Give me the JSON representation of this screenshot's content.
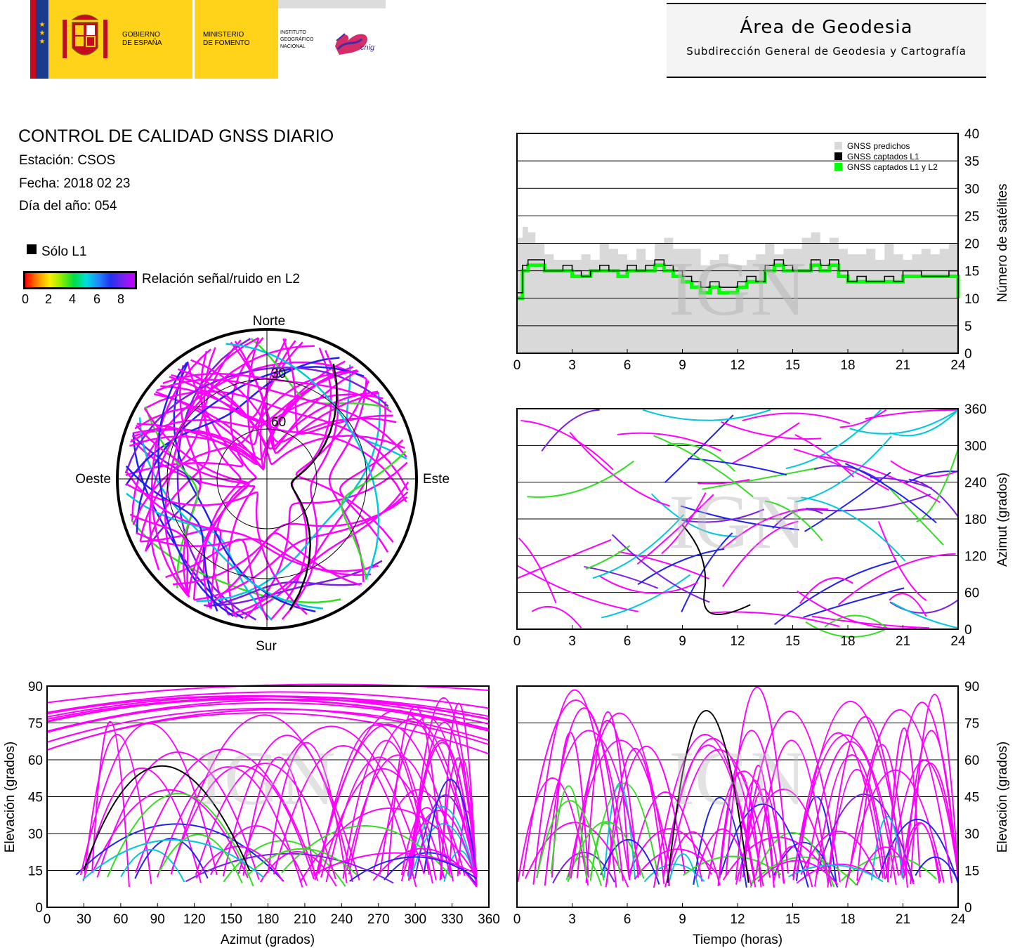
{
  "header": {
    "gov_line1": "GOBIERNO",
    "gov_line2": "DE ESPAÑA",
    "min_line1": "MINISTERIO",
    "min_line2": "DE FOMENTO",
    "inst_line1": "INSTITUTO",
    "inst_line2": "GEOGRÁFICO",
    "inst_line3": "NACIONAL",
    "cnig": "cnig",
    "area_title": "Área de Geodesia",
    "area_subtitle": "Subdirección General de Geodesia y Cartografía"
  },
  "report": {
    "title": "CONTROL DE CALIDAD GNSS DIARIO",
    "station": "Estación: CSOS",
    "date": "Fecha: 2018 02 23",
    "doy": "Día del año: 054"
  },
  "legend": {
    "l1_only": "Sólo L1",
    "snr_label": "Relación señal/ruido en L2",
    "snr_ticks": [
      "0",
      "2",
      "4",
      "6",
      "8"
    ]
  },
  "watermark": "IGN",
  "colors": {
    "magenta": "#ff00ff",
    "blue": "#2222ee",
    "violet": "#7a1ee6",
    "cyan": "#00c8d8",
    "green": "#33dd22",
    "predicted": "#d9d9d9",
    "l1": "#000000",
    "l1l2": "#00ff00"
  },
  "chart_data": [
    {
      "type": "skyplot",
      "labels": {
        "north": "Norte",
        "south": "Sur",
        "east": "Este",
        "west": "Oeste"
      },
      "rings": [
        "30",
        "60"
      ]
    },
    {
      "type": "area",
      "ylabel": "Número de satélites",
      "xlim": [
        0,
        24
      ],
      "ylim": [
        0,
        40
      ],
      "xticks": [
        "0",
        "3",
        "6",
        "9",
        "12",
        "15",
        "18",
        "21",
        "24"
      ],
      "yticks": [
        "0",
        "5",
        "10",
        "15",
        "20",
        "25",
        "30",
        "35",
        "40"
      ],
      "legend": [
        "GNSS predichos",
        "GNSS captados L1",
        "GNSS captados L1 y L2"
      ],
      "series": [
        {
          "name": "GNSS predichos",
          "x": [
            0,
            0.3,
            0.6,
            1.0,
            1.5,
            2,
            2.5,
            3,
            3.5,
            4,
            4.5,
            5,
            5.5,
            6,
            6.5,
            7,
            7.5,
            8,
            8.5,
            9,
            9.5,
            10,
            10.5,
            11,
            11.5,
            12,
            12.5,
            13,
            13.5,
            14,
            14.5,
            15,
            15.5,
            16,
            16.5,
            17,
            17.5,
            18,
            18.5,
            19,
            19.5,
            20,
            20.5,
            21,
            21.5,
            22,
            22.5,
            23,
            23.5,
            24
          ],
          "values": [
            21,
            23,
            22,
            20,
            18,
            17,
            17,
            17,
            18,
            17,
            20,
            19,
            18,
            17,
            19,
            17,
            20,
            21,
            19,
            19,
            19,
            16,
            17,
            18,
            16,
            16,
            17,
            18,
            20,
            18,
            19,
            19,
            21,
            22,
            20,
            21,
            19,
            18,
            18,
            19,
            17,
            20,
            18,
            17,
            18,
            19,
            18,
            19,
            20,
            20
          ]
        },
        {
          "name": "GNSS captados L1",
          "x": [
            0,
            0.3,
            0.6,
            1.0,
            1.5,
            2,
            2.5,
            3,
            3.5,
            4,
            4.5,
            5,
            5.5,
            6,
            6.5,
            7,
            7.5,
            8,
            8.5,
            9,
            9.5,
            10,
            10.5,
            11,
            11.5,
            12,
            12.5,
            13,
            13.5,
            14,
            14.5,
            15,
            15.5,
            16,
            16.5,
            17,
            17.5,
            18,
            18.5,
            19,
            19.5,
            20,
            20.5,
            21,
            21.5,
            22,
            22.5,
            23,
            23.5,
            24
          ],
          "values": [
            11,
            16,
            17,
            17,
            15,
            15,
            16,
            15,
            14,
            15,
            16,
            15,
            15,
            16,
            15,
            16,
            17,
            16,
            15,
            14,
            13,
            12,
            13,
            12,
            12,
            13,
            14,
            13,
            16,
            17,
            16,
            15,
            15,
            17,
            16,
            17,
            15,
            13,
            14,
            13,
            13,
            14,
            13,
            15,
            15,
            14,
            14,
            14,
            15,
            11
          ]
        },
        {
          "name": "GNSS captados L1 y L2",
          "x": [
            0,
            0.3,
            0.6,
            1.0,
            1.5,
            2,
            2.5,
            3,
            3.5,
            4,
            4.5,
            5,
            5.5,
            6,
            6.5,
            7,
            7.5,
            8,
            8.5,
            9,
            9.5,
            10,
            10.5,
            11,
            11.5,
            12,
            12.5,
            13,
            13.5,
            14,
            14.5,
            15,
            15.5,
            16,
            16.5,
            17,
            17.5,
            18,
            18.5,
            19,
            19.5,
            20,
            20.5,
            21,
            21.5,
            22,
            22.5,
            23,
            23.5,
            24
          ],
          "values": [
            10,
            15,
            16,
            16,
            15,
            15,
            15,
            14,
            14,
            15,
            15,
            15,
            14,
            15,
            15,
            15,
            16,
            15,
            14,
            13,
            12,
            11,
            12,
            11,
            11,
            12,
            13,
            13,
            15,
            16,
            15,
            15,
            15,
            16,
            15,
            16,
            14,
            13,
            13,
            13,
            13,
            13,
            13,
            14,
            14,
            14,
            14,
            14,
            14,
            10
          ]
        }
      ]
    },
    {
      "type": "scatter",
      "ylabel": "Azimut (grados)",
      "xlim": [
        0,
        24
      ],
      "ylim": [
        0,
        360
      ],
      "xticks": [
        "0",
        "3",
        "6",
        "9",
        "12",
        "15",
        "18",
        "21",
        "24"
      ],
      "yticks": [
        "0",
        "60",
        "120",
        "180",
        "240",
        "300",
        "360"
      ]
    },
    {
      "type": "scatter",
      "xlabel": "Azimut (grados)",
      "ylabel": "Elevación (grados)",
      "xlim": [
        0,
        360
      ],
      "ylim": [
        0,
        90
      ],
      "xticks": [
        "0",
        "30",
        "60",
        "90",
        "120",
        "150",
        "180",
        "210",
        "240",
        "270",
        "300",
        "330",
        "360"
      ],
      "yticks": [
        "0",
        "15",
        "30",
        "45",
        "60",
        "75",
        "90"
      ]
    },
    {
      "type": "scatter",
      "xlabel": "Tiempo (horas)",
      "ylabel": "Elevación (grados)",
      "xlim": [
        0,
        24
      ],
      "ylim": [
        0,
        90
      ],
      "xticks": [
        "0",
        "3",
        "6",
        "9",
        "12",
        "15",
        "18",
        "21",
        "24"
      ],
      "yticks": [
        "0",
        "15",
        "30",
        "45",
        "60",
        "75",
        "90"
      ]
    }
  ]
}
